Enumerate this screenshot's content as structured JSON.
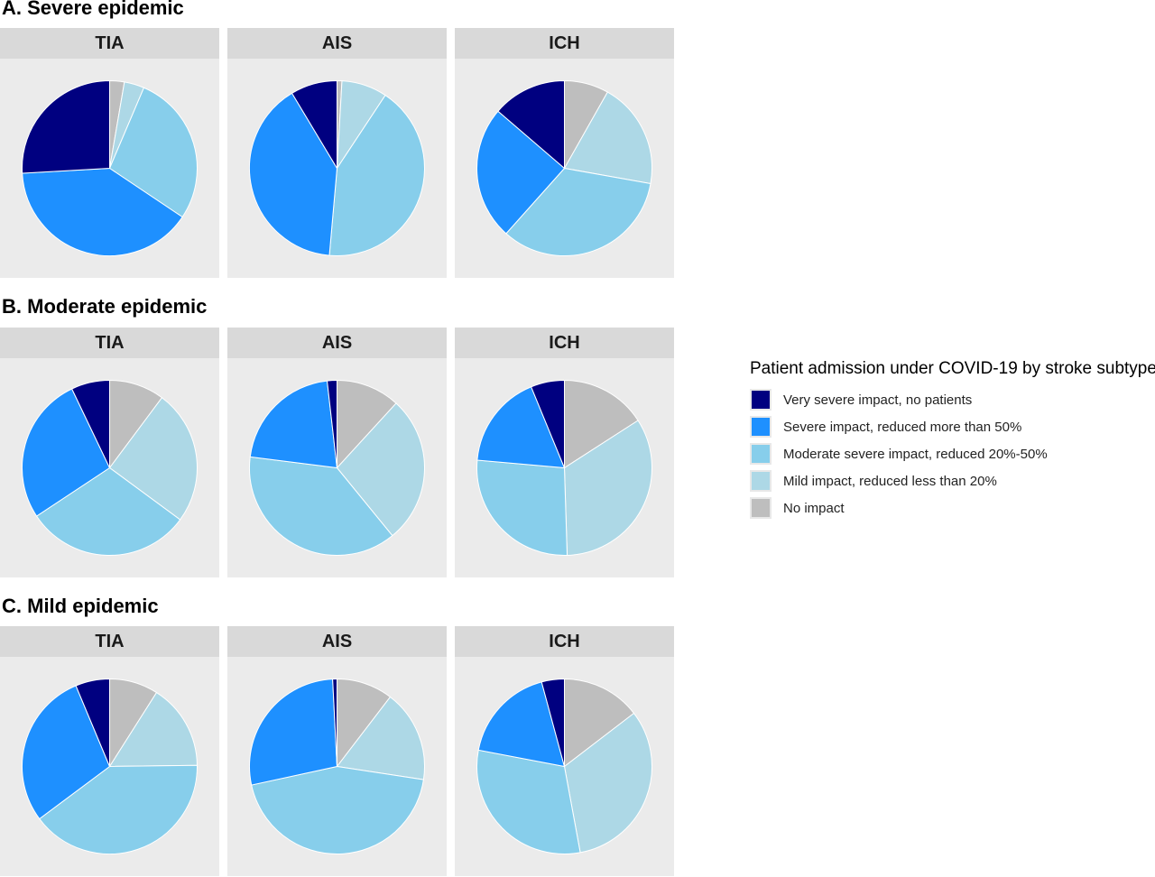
{
  "rows": [
    {
      "title": "A. Severe epidemic"
    },
    {
      "title": "B. Moderate epidemic"
    },
    {
      "title": "C. Mild epidemic"
    }
  ],
  "legend": {
    "title": "Patient admission under COVID-19 by stroke subtype",
    "items": [
      {
        "label": "Very severe impact, no patients",
        "color": "#000080"
      },
      {
        "label": "Severe impact, reduced more than 50%",
        "color": "#1e90ff"
      },
      {
        "label": "Moderate severe impact, reduced 20%-50%",
        "color": "#87ceeb"
      },
      {
        "label": "Mild impact, reduced less than 20%",
        "color": "#add8e6"
      },
      {
        "label": "No impact",
        "color": "#bebebe"
      }
    ]
  },
  "chart_data": [
    {
      "type": "pie",
      "row": "A. Severe epidemic",
      "panel": "TIA",
      "categories": [
        "No impact",
        "Mild impact, reduced less than 20%",
        "Moderate severe impact, reduced 20%-50%",
        "Severe impact, reduced more than 50%",
        "Very severe impact, no patients"
      ],
      "values": [
        2.7,
        3.7,
        28.0,
        39.7,
        25.9
      ]
    },
    {
      "type": "pie",
      "row": "A. Severe epidemic",
      "panel": "AIS",
      "categories": [
        "No impact",
        "Mild impact, reduced less than 20%",
        "Moderate severe impact, reduced 20%-50%",
        "Severe impact, reduced more than 50%",
        "Very severe impact, no patients"
      ],
      "values": [
        0.9,
        8.4,
        42.1,
        40.0,
        8.6
      ]
    },
    {
      "type": "pie",
      "row": "A. Severe epidemic",
      "panel": "ICH",
      "categories": [
        "No impact",
        "Mild impact, reduced less than 20%",
        "Moderate severe impact, reduced 20%-50%",
        "Severe impact, reduced more than 50%",
        "Very severe impact, no patients"
      ],
      "values": [
        8.2,
        19.6,
        33.8,
        24.7,
        13.7
      ]
    },
    {
      "type": "pie",
      "row": "B. Moderate epidemic",
      "panel": "TIA",
      "categories": [
        "No impact",
        "Mild impact, reduced less than 20%",
        "Moderate severe impact, reduced 20%-50%",
        "Severe impact, reduced more than 50%",
        "Very severe impact, no patients"
      ],
      "values": [
        10.2,
        24.9,
        30.6,
        27.2,
        7.1
      ]
    },
    {
      "type": "pie",
      "row": "B. Moderate epidemic",
      "panel": "AIS",
      "categories": [
        "No impact",
        "Mild impact, reduced less than 20%",
        "Moderate severe impact, reduced 20%-50%",
        "Severe impact, reduced more than 50%",
        "Very severe impact, no patients"
      ],
      "values": [
        11.8,
        27.3,
        37.9,
        21.2,
        1.8
      ]
    },
    {
      "type": "pie",
      "row": "B. Moderate epidemic",
      "panel": "ICH",
      "categories": [
        "No impact",
        "Mild impact, reduced less than 20%",
        "Moderate severe impact, reduced 20%-50%",
        "Severe impact, reduced more than 50%",
        "Very severe impact, no patients"
      ],
      "values": [
        15.9,
        33.6,
        26.9,
        17.4,
        6.2
      ]
    },
    {
      "type": "pie",
      "row": "C. Mild epidemic",
      "panel": "TIA",
      "categories": [
        "No impact",
        "Mild impact, reduced less than 20%",
        "Moderate severe impact, reduced 20%-50%",
        "Severe impact, reduced more than 50%",
        "Very severe impact, no patients"
      ],
      "values": [
        9.0,
        15.8,
        40.0,
        28.9,
        6.3
      ]
    },
    {
      "type": "pie",
      "row": "C. Mild epidemic",
      "panel": "AIS",
      "categories": [
        "No impact",
        "Mild impact, reduced less than 20%",
        "Moderate severe impact, reduced 20%-50%",
        "Severe impact, reduced more than 50%",
        "Very severe impact, no patients"
      ],
      "values": [
        10.4,
        17.0,
        44.2,
        27.6,
        0.8
      ]
    },
    {
      "type": "pie",
      "row": "C. Mild epidemic",
      "panel": "ICH",
      "categories": [
        "No impact",
        "Mild impact, reduced less than 20%",
        "Moderate severe impact, reduced 20%-50%",
        "Severe impact, reduced more than 50%",
        "Very severe impact, no patients"
      ],
      "values": [
        14.6,
        32.5,
        30.9,
        17.8,
        4.2
      ]
    }
  ]
}
